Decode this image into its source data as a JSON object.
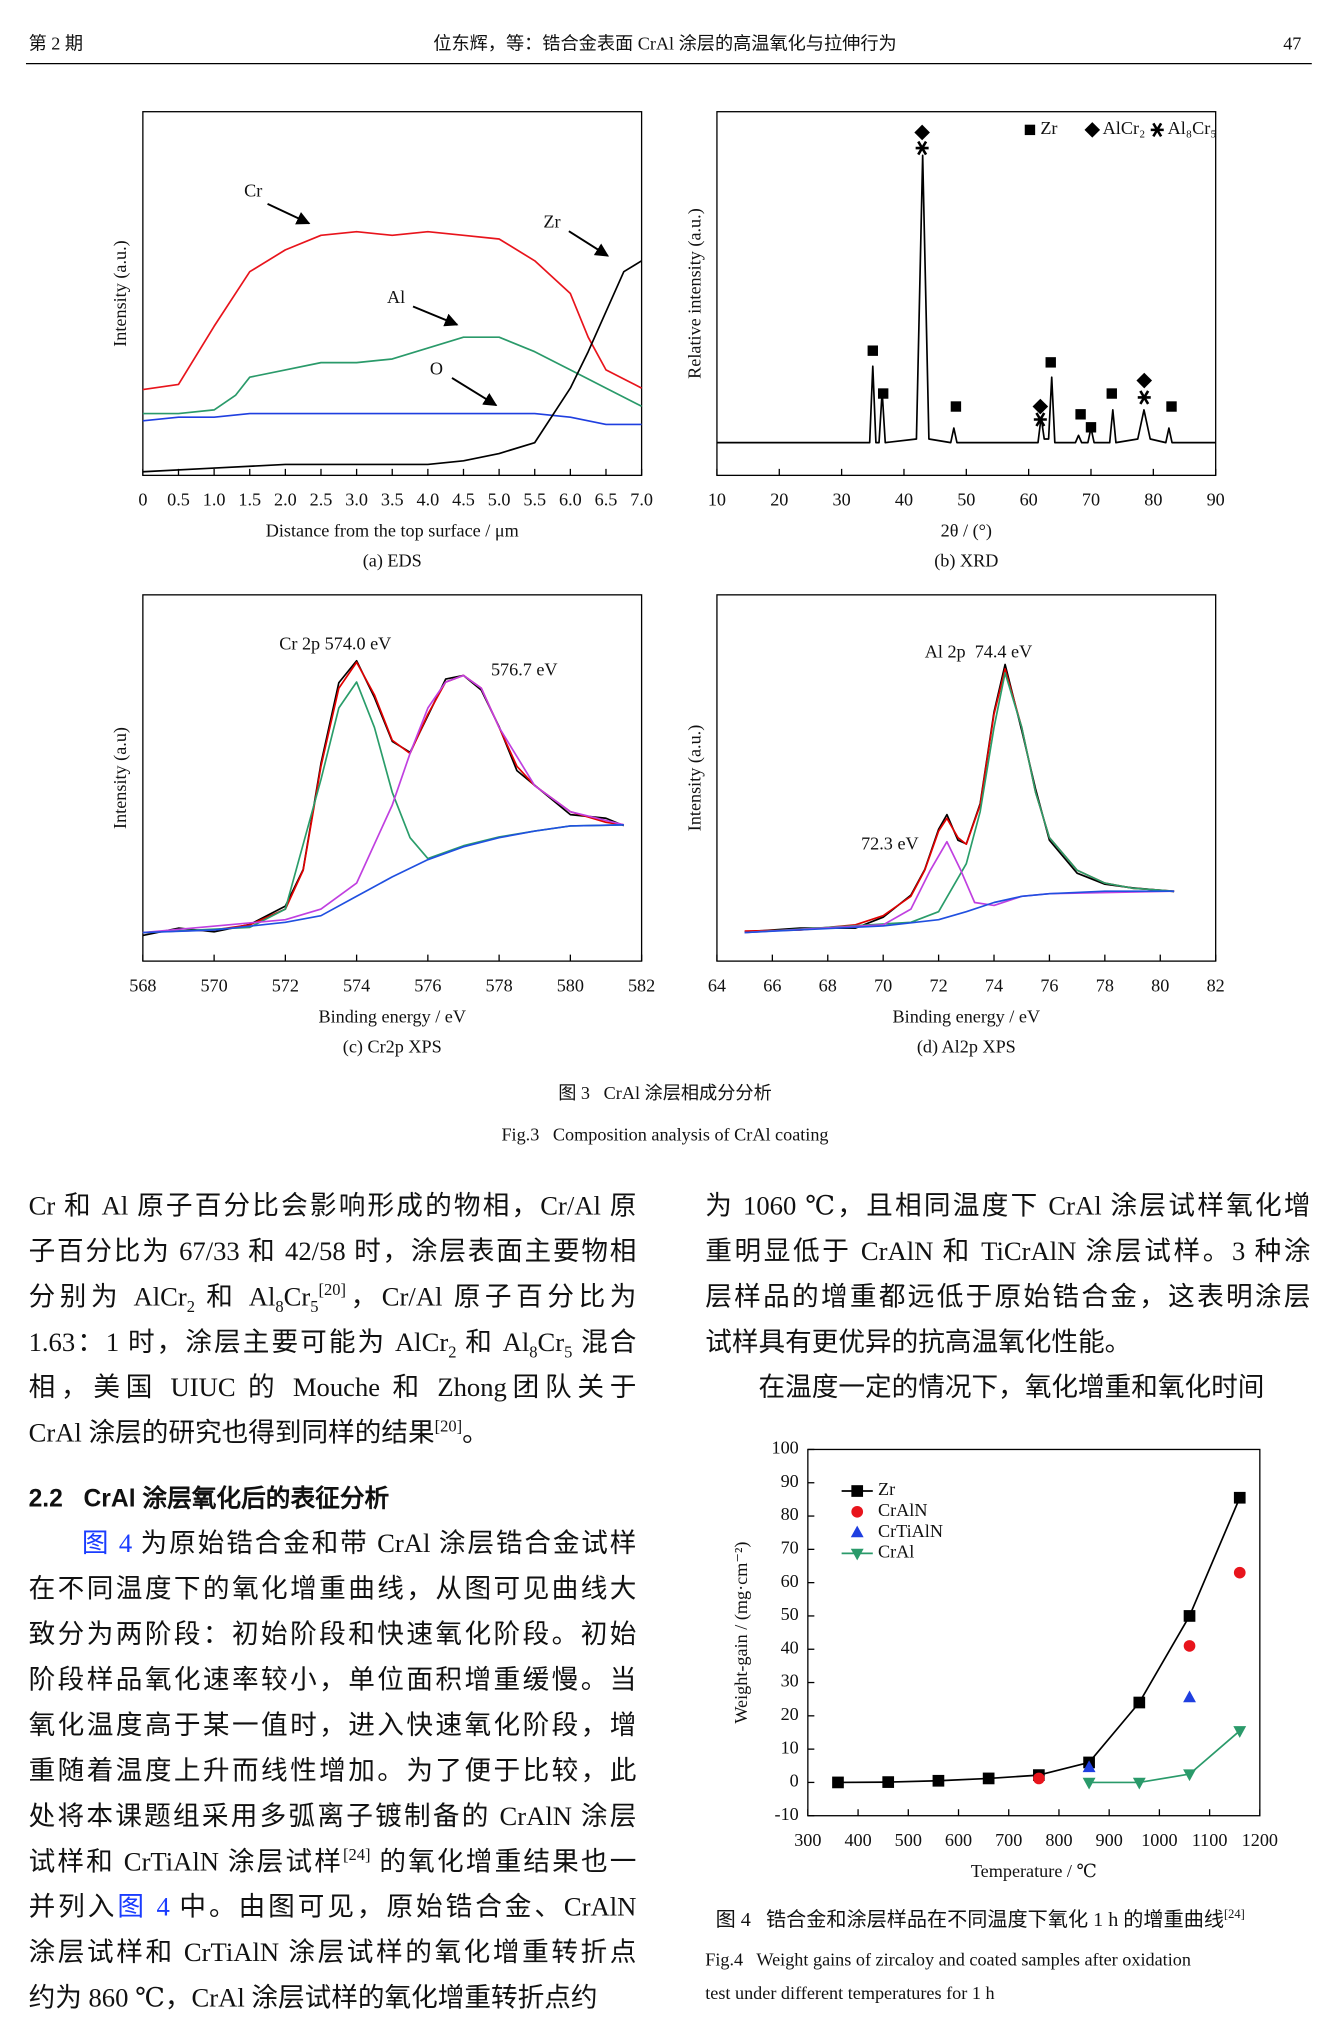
{
  "header": {
    "left": "第 2 期",
    "center": "位东辉，等：锆合金表面 CrAl 涂层的高温氧化与拉伸行为",
    "page": "47"
  },
  "figure3": {
    "caption_cn": "图 3   CrAl 涂层相成分分析",
    "caption_en": "Fig.3   Composition analysis of CrAl coating"
  },
  "figure4": {
    "caption_cn": [
      "图 4   锆合金和涂层样品在不同温度下氧化 1 h 的增重曲线",
      {
        "sup": "[24]"
      }
    ],
    "caption_en": [
      "Fig.4   Weight gains of zircaloy and coated samples after oxidation",
      "test under different temperatures for 1 h"
    ]
  },
  "chart_data": [
    {
      "type": "line",
      "caption": "(a) EDS",
      "xlabel": "Distance from the top surface / μm",
      "ylabel": "Intensity (a.u.)",
      "xlim": [
        0,
        7
      ],
      "ylim": [
        0,
        100
      ],
      "xticks": [
        0,
        0.5,
        {
          "value": 1,
          "label": "1.0"
        },
        1.5,
        {
          "value": 2,
          "label": "2.0"
        },
        2.5,
        {
          "value": 3,
          "label": "3.0"
        },
        3.5,
        {
          "value": 4,
          "label": "4.0"
        },
        4.5,
        {
          "value": 5,
          "label": "5.0"
        },
        5.5,
        {
          "value": 6,
          "label": "6.0"
        },
        6.5,
        {
          "value": 7,
          "label": "7.0"
        }
      ],
      "series": [
        {
          "name": "Cr",
          "color": "#e8141c",
          "x": [
            0,
            0.5,
            1,
            1.5,
            2,
            2.5,
            3,
            3.5,
            4,
            4.5,
            5,
            5.5,
            6,
            6.25,
            6.5,
            7
          ],
          "values": [
            23.6,
            25,
            41,
            56,
            62,
            66,
            67,
            66,
            67,
            66,
            65,
            59,
            50,
            38,
            29,
            24
          ]
        },
        {
          "name": "Al",
          "color": "#2a9a6a",
          "x": [
            0,
            0.5,
            1,
            1.3,
            1.5,
            2,
            2.5,
            3,
            3.5,
            4,
            4.5,
            5,
            5.5,
            6,
            6.5,
            7
          ],
          "values": [
            17,
            17,
            18,
            22,
            27,
            29,
            31,
            31,
            32,
            35,
            38,
            38,
            34,
            29,
            24,
            19
          ]
        },
        {
          "name": "O",
          "color": "#1f3fe0",
          "x": [
            0,
            0.5,
            1,
            1.5,
            2,
            3,
            4,
            5,
            5.5,
            6,
            6.5,
            7
          ],
          "values": [
            15,
            16,
            16,
            17,
            17,
            17,
            17,
            17,
            17,
            16,
            14,
            14
          ]
        },
        {
          "name": "Zr",
          "color": "#000000",
          "x": [
            0,
            1,
            2,
            3,
            4,
            4.5,
            5,
            5.5,
            6,
            6.25,
            6.5,
            6.75,
            7
          ],
          "values": [
            1,
            2,
            3,
            3,
            3,
            4,
            6,
            9,
            24,
            34,
            45,
            56,
            59
          ]
        }
      ]
    },
    {
      "type": "line",
      "caption": "(b) XRD",
      "xlabel": "2θ / (°)",
      "ylabel": "Relative intensity (a.u.)",
      "xlim": [
        10,
        90
      ],
      "ylim": [
        0,
        100
      ],
      "xticks": [
        10,
        20,
        30,
        40,
        50,
        60,
        70,
        80,
        90
      ],
      "phases": [
        "Zr",
        "AlCr₂",
        "Al₈Cr₅"
      ],
      "series": [
        {
          "color": "#000000",
          "x": [
            10,
            20,
            30,
            34.5,
            35,
            35.5,
            36,
            36.5,
            37,
            42,
            43,
            44,
            47.5,
            48,
            48.5,
            61.5,
            62,
            62.5,
            63.2,
            63.7,
            64.2,
            67.5,
            68,
            68.5,
            69.5,
            70,
            70.5,
            73,
            73.5,
            74,
            77.5,
            78.5,
            79.5,
            82,
            82.5,
            83,
            90
          ],
          "values": [
            9,
            9,
            9,
            9,
            30,
            9,
            9,
            23,
            9,
            10,
            88,
            10,
            9,
            13,
            9,
            9,
            16,
            10,
            10,
            27,
            9,
            9,
            11,
            9,
            9,
            13,
            9,
            9,
            18,
            9,
            10,
            18,
            10,
            9,
            13,
            9,
            9
          ]
        }
      ]
    },
    {
      "type": "line",
      "caption": "(c) Cr2p XPS",
      "xlabel": "Binding energy / eV",
      "ylabel": "Intensity (a.u)",
      "xlim": [
        568,
        582
      ],
      "ylim": [
        0,
        100
      ],
      "xticks": [
        568,
        570,
        572,
        574,
        576,
        578,
        580,
        582
      ],
      "annotations": [
        "Cr 2p 574.0 eV",
        "576.7 eV"
      ],
      "series": [
        {
          "color": "#000000",
          "x": [
            568,
            569,
            570,
            571,
            572,
            572.5,
            573,
            573.5,
            574,
            574.5,
            575,
            575.5,
            576,
            576.5,
            577,
            577.5,
            578,
            578.5,
            579,
            580,
            581,
            581.5
          ],
          "values": [
            7,
            9,
            8,
            10,
            15,
            25,
            54,
            76,
            82,
            72,
            60,
            57,
            67,
            77,
            78,
            74,
            64,
            52,
            48,
            40,
            39,
            37
          ]
        },
        {
          "color": "#e00000",
          "x": [
            568,
            569,
            570,
            571,
            572,
            572.5,
            573,
            573.5,
            574,
            574.5,
            575,
            575.5,
            576,
            576.5,
            577,
            577.5,
            578,
            578.5,
            579,
            580,
            581,
            581.5
          ],
          "values": [
            7.8,
            8.2,
            8.5,
            9.9,
            14.2,
            24.8,
            53.2,
            74.5,
            81.6,
            72.7,
            60.3,
            56.7,
            67.4,
            76.2,
            78,
            74.5,
            63.8,
            53.2,
            47.9,
            40.8,
            37.9,
            37.2
          ]
        },
        {
          "color": "#2a9d6a",
          "x": [
            568,
            571,
            572,
            573,
            573.5,
            574,
            574.5,
            575,
            575.5,
            576,
            577,
            578,
            579,
            580,
            581.5
          ],
          "values": [
            7.8,
            9.2,
            14.2,
            49.6,
            69.1,
            76.2,
            63.8,
            46.1,
            33.7,
            28,
            31.5,
            33.9,
            35.5,
            36.9,
            37.2
          ]
        },
        {
          "color": "#c040e0",
          "x": [
            568,
            572,
            573,
            574,
            575,
            575.5,
            576,
            576.5,
            577,
            577.5,
            578,
            579,
            580,
            581.5
          ],
          "values": [
            7.8,
            11.3,
            14.2,
            21.3,
            42.6,
            56.7,
            69.1,
            76.2,
            78,
            74.5,
            63.8,
            47.9,
            40.8,
            37.2
          ]
        },
        {
          "color": "#2050e0",
          "x": [
            568,
            570,
            572,
            573,
            574,
            575,
            576,
            577,
            578,
            579,
            580,
            581.5
          ],
          "values": [
            7.8,
            8.5,
            10.6,
            12.4,
            17.7,
            23,
            27.7,
            31.2,
            33.7,
            35.5,
            36.9,
            37.2
          ]
        }
      ]
    },
    {
      "type": "line",
      "caption": "(d) Al2p XPS",
      "xlabel": "Binding energy / eV",
      "ylabel": "Intensity (a.u.)",
      "xlim": [
        64,
        82
      ],
      "ylim": [
        0,
        100
      ],
      "xticks": [
        64,
        66,
        68,
        70,
        72,
        74,
        76,
        78,
        80,
        82
      ],
      "annotations": [
        "Al 2p  74.4 eV",
        "72.3 eV"
      ],
      "series": [
        {
          "color": "#000000",
          "x": [
            65,
            67,
            69,
            70,
            71,
            71.5,
            72,
            72.3,
            72.7,
            73,
            73.5,
            74,
            74.4,
            75,
            75.5,
            76,
            77,
            78,
            79,
            80.5
          ],
          "values": [
            8,
            9,
            9,
            12,
            18,
            25,
            36,
            40,
            33,
            32,
            43,
            68,
            81,
            63,
            47,
            33,
            24,
            21,
            20,
            19
          ]
        },
        {
          "color": "#e00000",
          "x": [
            65,
            67,
            69,
            70,
            71,
            71.5,
            72,
            72.3,
            72.7,
            73,
            73.5,
            74,
            74.4,
            75,
            75.5,
            76,
            77,
            78,
            79,
            80.5
          ],
          "values": [
            8.2,
            8.5,
            9.9,
            12.4,
            17.7,
            24.8,
            35.5,
            39,
            33.7,
            31.9,
            42.6,
            67.4,
            79.8,
            63.8,
            46.1,
            33.7,
            24.8,
            21.3,
            19.9,
            19.1
          ]
        },
        {
          "color": "#2a9d6a",
          "x": [
            65,
            71,
            72,
            73,
            73.5,
            74,
            74.4,
            75,
            75.5,
            76,
            77,
            78,
            79,
            80.5
          ],
          "values": [
            7.8,
            10.6,
            13.5,
            26.6,
            40.8,
            63.8,
            78.7,
            63.8,
            46.1,
            33.7,
            24.8,
            21.3,
            19.9,
            19.1
          ]
        },
        {
          "color": "#c040e0",
          "x": [
            65,
            70,
            71,
            71.7,
            72.3,
            72.8,
            73.3,
            74,
            75,
            76,
            80.5
          ],
          "values": [
            7.8,
            9.9,
            14.2,
            24.8,
            32.6,
            24.8,
            16,
            15.2,
            17.7,
            18.4,
            19.1
          ]
        },
        {
          "color": "#2050e0",
          "x": [
            65,
            70,
            72,
            73,
            74,
            75,
            76,
            78,
            80.5
          ],
          "values": [
            7.8,
            9.6,
            11.3,
            13.5,
            16,
            17.7,
            18.4,
            19.1,
            19.1
          ]
        }
      ]
    },
    {
      "type": "line",
      "xlabel": "Temperature / ℃",
      "ylabel": "Weight-gain / (mg·cm⁻²)",
      "xlim": [
        300,
        1200
      ],
      "ylim": [
        -10,
        100
      ],
      "xticks": [
        300,
        400,
        500,
        600,
        700,
        800,
        900,
        1000,
        1100,
        1200
      ],
      "yticks": [
        -10,
        0,
        10,
        20,
        30,
        40,
        50,
        60,
        70,
        80,
        90,
        100
      ],
      "series": [
        {
          "name": "Zr",
          "color": "#000000",
          "marker": "square",
          "line": true,
          "x": [
            360,
            460,
            560,
            660,
            760,
            860,
            960,
            1060,
            1160
          ],
          "values": [
            0,
            0.1,
            0.5,
            1.2,
            2.2,
            6,
            24,
            50,
            85.5
          ]
        },
        {
          "name": "CrAlN",
          "color": "#e8141c",
          "marker": "circle",
          "line": false,
          "x": [
            760,
            1060,
            1160
          ],
          "values": [
            1.2,
            41,
            63
          ]
        },
        {
          "name": "CrTiAlN",
          "color": "#1f3fe0",
          "marker": "triangle",
          "line": false,
          "x": [
            860,
            1060
          ],
          "values": [
            4.5,
            25.5
          ]
        },
        {
          "name": "CrAl",
          "color": "#2a9a6a",
          "marker": "triangle-down",
          "line": true,
          "x": [
            860,
            960,
            1060,
            1160
          ],
          "values": [
            0,
            0,
            2.5,
            15.5
          ]
        }
      ]
    }
  ],
  "body": {
    "left": [
      {
        "lines": [
          [
            "Cr 和 Al 原子百分比会影响形成的物相，Cr/Al 原"
          ],
          [
            "子百分比为 67/33 和 42/58 时，涂层表面主要物相"
          ],
          [
            "分别为 AlCr",
            {
              "sub": "2"
            },
            " 和 Al",
            {
              "sub": "8"
            },
            "Cr",
            {
              "sub": "5"
            },
            {
              "sup": "[20]"
            },
            "，Cr/Al 原子百分比为"
          ],
          [
            "1.63：1 时，涂层主要可能为 AlCr",
            {
              "sub": "2"
            },
            " 和 Al",
            {
              "sub": "8"
            },
            "Cr",
            {
              "sub": "5"
            },
            " 混合"
          ],
          [
            "相，美国 UIUC 的 Mouche 和 Zhong团队关于"
          ],
          [
            "CrAl 涂层的研究也得到同样的结果",
            {
              "sup": "[20]"
            },
            "。"
          ]
        ]
      },
      {
        "heading": "2.2   CrAl 涂层氧化后的表征分析"
      },
      {
        "indent": true,
        "lines": [
          [
            {
              "link": "图 4"
            },
            " 为原始锆合金和带 CrAl 涂层锆合金试样"
          ],
          [
            "在不同温度下的氧化增重曲线，从图可见曲线大"
          ],
          [
            "致分为两阶段：初始阶段和快速氧化阶段。初始"
          ],
          [
            "阶段样品氧化速率较小，单位面积增重缓慢。当"
          ],
          [
            "氧化温度高于某一值时，进入快速氧化阶段，增"
          ],
          [
            "重随着温度上升而线性增加。为了便于比较，此"
          ],
          [
            "处将本课题组采用多弧离子镀制备的 CrAlN 涂层"
          ],
          [
            "试样和 CrTiAlN 涂层试样",
            {
              "sup": "[24]"
            },
            " 的氧化增重结果也一"
          ],
          [
            "并列入",
            {
              "link": "图 4"
            },
            " 中。由图可见，原始锆合金、CrAlN"
          ],
          [
            "涂层试样和 CrTiAlN 涂层试样的氧化增重转折点"
          ],
          [
            "约为 860 ℃，CrAl 涂层试样的氧化增重转折点约"
          ]
        ]
      }
    ],
    "right": [
      {
        "lines": [
          [
            "为 1060 ℃，且相同温度下 CrAl 涂层试样氧化增"
          ],
          [
            "重明显低于 CrAlN 和 TiCrAlN 涂层试样。3 种涂"
          ],
          [
            "层样品的增重都远低于原始锆合金，这表明涂层"
          ],
          [
            "试样具有更优异的抗高温氧化性能。"
          ]
        ]
      },
      {
        "indent": true,
        "lines": [
          [
            "在温度一定的情况下，氧化增重和氧化时间"
          ]
        ]
      }
    ]
  }
}
